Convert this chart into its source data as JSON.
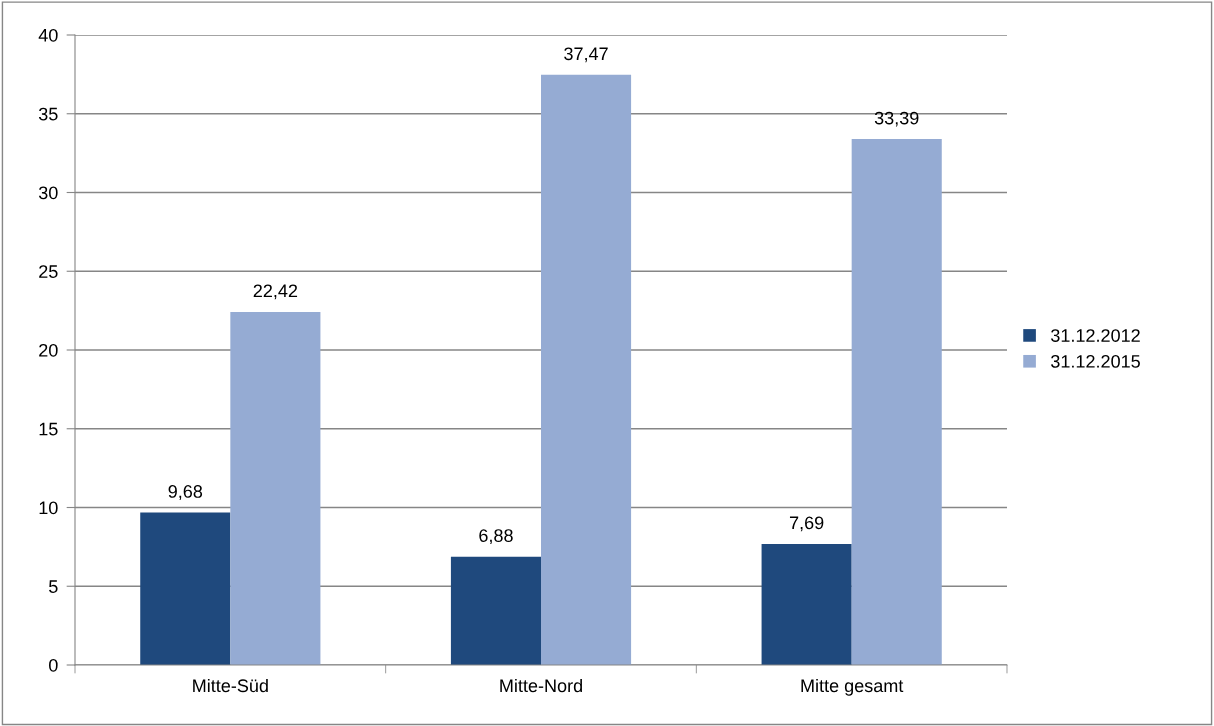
{
  "chart_data": {
    "type": "bar",
    "categories": [
      "Mitte-Süd",
      "Mitte-Nord",
      "Mitte gesamt"
    ],
    "series": [
      {
        "name": "31.12.2012",
        "color": "#1f497d",
        "values": [
          9.68,
          6.88,
          7.69
        ],
        "value_labels": [
          "9,68",
          "6,88",
          "7,69"
        ]
      },
      {
        "name": "31.12.2015",
        "color": "#95abd3",
        "values": [
          22.42,
          37.47,
          33.39
        ],
        "value_labels": [
          "22,42",
          "37,47",
          "33,39"
        ]
      }
    ],
    "ylim": [
      0,
      40
    ],
    "yticks": [
      0,
      5,
      10,
      15,
      20,
      25,
      30,
      35,
      40
    ],
    "grid": "y",
    "legend": "right"
  }
}
